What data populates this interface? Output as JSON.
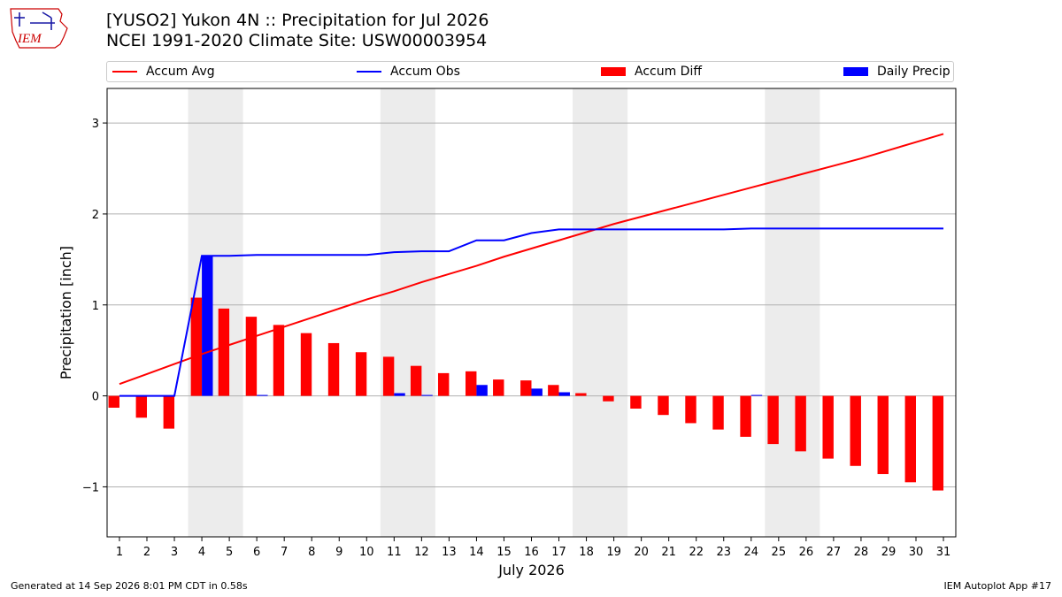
{
  "header": {
    "title_line1": "[YUSO2] Yukon 4N :: Precipitation for Jul 2026",
    "title_line2": "NCEI 1991-2020 Climate Site: USW00003954"
  },
  "logo": {
    "text": "IEM",
    "color": "#cc0000",
    "accent": "#1a1aa6"
  },
  "footer": {
    "generated": "Generated at 14 Sep 2026 8:01 PM CDT in 0.58s",
    "app": "IEM Autoplot App #17"
  },
  "legend": [
    {
      "label": "Accum Avg",
      "kind": "line",
      "color": "#ff0000"
    },
    {
      "label": "Accum Obs",
      "kind": "line",
      "color": "#0000ff"
    },
    {
      "label": "Accum Diff",
      "kind": "bar",
      "color": "#ff0000"
    },
    {
      "label": "Daily Precip",
      "kind": "bar",
      "color": "#0000ff"
    }
  ],
  "chart_data": {
    "type": "bar",
    "xlabel": "July 2026",
    "ylabel": "Precipitation [inch]",
    "xlim": [
      0.55,
      31.45
    ],
    "ylim": [
      -1.55,
      3.38
    ],
    "yticks": [
      -1,
      0,
      1,
      2,
      3
    ],
    "ytick_labels": [
      "−1",
      "0",
      "1",
      "2",
      "3"
    ],
    "x": [
      1,
      2,
      3,
      4,
      5,
      6,
      7,
      8,
      9,
      10,
      11,
      12,
      13,
      14,
      15,
      16,
      17,
      18,
      19,
      20,
      21,
      22,
      23,
      24,
      25,
      26,
      27,
      28,
      29,
      30,
      31
    ],
    "grid": true,
    "weekend_shading": [
      [
        3.5,
        5.5
      ],
      [
        10.5,
        12.5
      ],
      [
        17.5,
        19.5
      ],
      [
        24.5,
        26.5
      ]
    ],
    "weekend_color": "#ececec",
    "series": [
      {
        "name": "Accum Avg",
        "kind": "line",
        "color": "#ff0000",
        "values": [
          0.13,
          0.24,
          0.35,
          0.46,
          0.56,
          0.66,
          0.76,
          0.86,
          0.96,
          1.06,
          1.15,
          1.25,
          1.34,
          1.43,
          1.53,
          1.62,
          1.71,
          1.8,
          1.89,
          1.97,
          2.05,
          2.13,
          2.21,
          2.29,
          2.37,
          2.45,
          2.53,
          2.61,
          2.7,
          2.79,
          2.88
        ]
      },
      {
        "name": "Accum Obs",
        "kind": "line",
        "color": "#0000ff",
        "values": [
          0.0,
          0.0,
          0.0,
          1.54,
          1.54,
          1.55,
          1.55,
          1.55,
          1.55,
          1.55,
          1.58,
          1.59,
          1.59,
          1.71,
          1.71,
          1.79,
          1.83,
          1.83,
          1.83,
          1.83,
          1.83,
          1.83,
          1.83,
          1.84,
          1.84,
          1.84,
          1.84,
          1.84,
          1.84,
          1.84,
          1.84
        ]
      },
      {
        "name": "Accum Diff",
        "kind": "bar",
        "color": "#ff0000",
        "values": [
          -0.13,
          -0.24,
          -0.36,
          1.08,
          0.96,
          0.87,
          0.78,
          0.69,
          0.58,
          0.48,
          0.43,
          0.33,
          0.25,
          0.27,
          0.18,
          0.17,
          0.12,
          0.03,
          -0.06,
          -0.14,
          -0.21,
          -0.3,
          -0.37,
          -0.45,
          -0.53,
          -0.61,
          -0.69,
          -0.77,
          -0.86,
          -0.95,
          -1.04
        ]
      },
      {
        "name": "Daily Precip",
        "kind": "bar",
        "color": "#0000ff",
        "values": [
          0,
          0,
          0,
          1.54,
          0,
          0.01,
          0,
          0,
          0,
          0,
          0.03,
          0.01,
          0,
          0.12,
          0,
          0.08,
          0.04,
          0,
          0,
          0,
          0,
          0,
          0,
          0.01,
          0,
          0,
          0,
          0,
          0,
          0,
          0
        ]
      }
    ]
  }
}
